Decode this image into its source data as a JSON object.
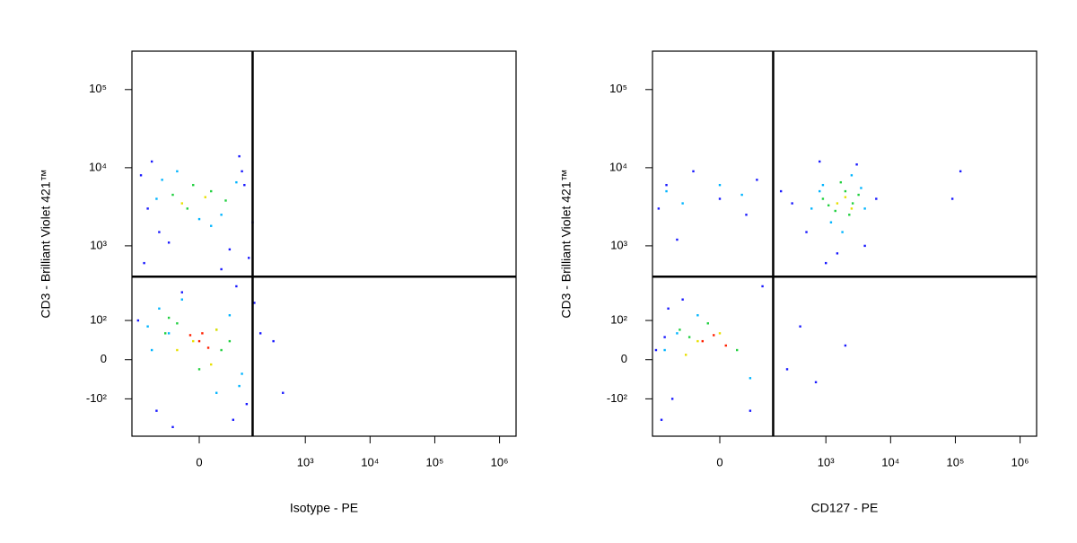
{
  "chart_data": [
    {
      "type": "scatter",
      "xlabel": "Isotype - PE",
      "ylabel": "CD3 - Brilliant Violet 421™",
      "xscale": {
        "type": "asinh",
        "cofactor": 46
      },
      "yscale": {
        "type": "asinh",
        "cofactor": 70
      },
      "xlim": [
        -250,
        1800000
      ],
      "ylim": [
        -330,
        310000
      ],
      "xticks": [
        0,
        {
          "value": 1000,
          "label": "10³"
        },
        {
          "value": 10000,
          "label": "10⁴"
        },
        {
          "value": 100000,
          "label": "10⁵"
        },
        {
          "value": 1000000,
          "label": "10⁶"
        }
      ],
      "yticks": [
        {
          "value": -100,
          "label": "-10²"
        },
        0,
        {
          "value": 100,
          "label": "10²"
        },
        {
          "value": 1000,
          "label": "10³"
        },
        {
          "value": 10000,
          "label": "10⁴"
        },
        {
          "value": 100000,
          "label": "10⁵"
        }
      ],
      "gate_x": 150,
      "gate_y": 400,
      "series": [
        {
          "color": "#1a1aff",
          "x": [
            -180,
            -120,
            -90,
            60,
            110,
            150,
            -160,
            90,
            -60,
            130,
            -140,
            40,
            100,
            -100,
            70,
            -30,
            160,
            200,
            320,
            450,
            -200,
            -50,
            120,
            80
          ],
          "values": [
            8000,
            12000,
            1500,
            900,
            6000,
            2000,
            600,
            14000,
            1100,
            700,
            3000,
            500,
            9000,
            -150,
            -200,
            250,
            180,
            60,
            40,
            -80,
            100,
            -250,
            -120,
            300
          ]
        },
        {
          "color": "#00b4ff",
          "x": [
            -80,
            -40,
            40,
            80,
            -100,
            20,
            -60,
            60,
            -120,
            100,
            -90,
            90,
            -30,
            30,
            0,
            -140
          ],
          "values": [
            7000,
            9000,
            2500,
            6500,
            4000,
            1800,
            60,
            120,
            20,
            -30,
            150,
            -60,
            200,
            -80,
            2200,
            80
          ]
        },
        {
          "color": "#22d040",
          "x": [
            -50,
            -20,
            20,
            50,
            -70,
            60,
            -40,
            40,
            0,
            -60,
            30,
            -10
          ],
          "values": [
            4500,
            3000,
            5000,
            3800,
            60,
            40,
            90,
            20,
            -20,
            110,
            70,
            6000
          ]
        },
        {
          "color": "#e8e000",
          "x": [
            -30,
            10,
            -10,
            30,
            -40,
            20
          ],
          "values": [
            3500,
            4200,
            40,
            70,
            20,
            -10
          ]
        },
        {
          "color": "#ff2000",
          "x": [
            0,
            -15,
            15,
            5
          ],
          "values": [
            40,
            55,
            25,
            60
          ]
        }
      ]
    },
    {
      "type": "scatter",
      "xlabel": "CD127 - PE",
      "ylabel": "CD3 - Brilliant Violet 421™",
      "xscale": {
        "type": "asinh",
        "cofactor": 46
      },
      "yscale": {
        "type": "asinh",
        "cofactor": 70
      },
      "xlim": [
        -250,
        1800000
      ],
      "ylim": [
        -330,
        310000
      ],
      "xticks": [
        0,
        {
          "value": 1000,
          "label": "10³"
        },
        {
          "value": 10000,
          "label": "10⁴"
        },
        {
          "value": 100000,
          "label": "10⁵"
        },
        {
          "value": 1000000,
          "label": "10⁶"
        }
      ],
      "yticks": [
        {
          "value": -100,
          "label": "-10²"
        },
        0,
        {
          "value": 100,
          "label": "10²"
        },
        {
          "value": 1000,
          "label": "10³"
        },
        {
          "value": 10000,
          "label": "10⁴"
        },
        {
          "value": 100000,
          "label": "10⁵"
        }
      ],
      "gate_x": 150,
      "gate_y": 400,
      "series": [
        {
          "color": "#1a1aff",
          "x": [
            -200,
            -150,
            -100,
            -50,
            0,
            50,
            80,
            -180,
            -120,
            200,
            300,
            500,
            800,
            1500,
            3000,
            6000,
            -160,
            -80,
            60,
            400,
            700,
            2000,
            -140,
            100,
            250,
            1000,
            4000,
            120000,
            90000,
            -220
          ],
          "values": [
            3000,
            6000,
            1200,
            9000,
            4000,
            2500,
            7000,
            -200,
            -100,
            5000,
            3500,
            1500,
            12000,
            800,
            11000,
            4000,
            50,
            200,
            -150,
            80,
            -50,
            30,
            150,
            300,
            -20,
            600,
            1000,
            9000,
            4000,
            20
          ]
        },
        {
          "color": "#00b4ff",
          "x": [
            -150,
            -80,
            0,
            40,
            600,
            900,
            1200,
            2500,
            4000,
            1800,
            -100,
            -40,
            60,
            -160,
            800,
            3500
          ],
          "values": [
            5000,
            3500,
            6000,
            4500,
            3000,
            6000,
            2000,
            8000,
            3000,
            1500,
            60,
            120,
            -40,
            20,
            5000,
            5500
          ]
        },
        {
          "color": "#22d040",
          "x": [
            900,
            1400,
            2000,
            2600,
            3200,
            1100,
            -60,
            -20,
            30,
            -90,
            1700,
            2300
          ],
          "values": [
            4000,
            2800,
            5000,
            3500,
            4500,
            3300,
            50,
            90,
            20,
            70,
            6500,
            2500
          ]
        },
        {
          "color": "#e8e000",
          "x": [
            1500,
            2000,
            2500,
            -40,
            0,
            -70
          ],
          "values": [
            3500,
            4200,
            3000,
            40,
            60,
            10
          ]
        },
        {
          "color": "#ff2000",
          "x": [
            -30,
            -10,
            10
          ],
          "values": [
            40,
            55,
            30
          ]
        }
      ]
    }
  ]
}
